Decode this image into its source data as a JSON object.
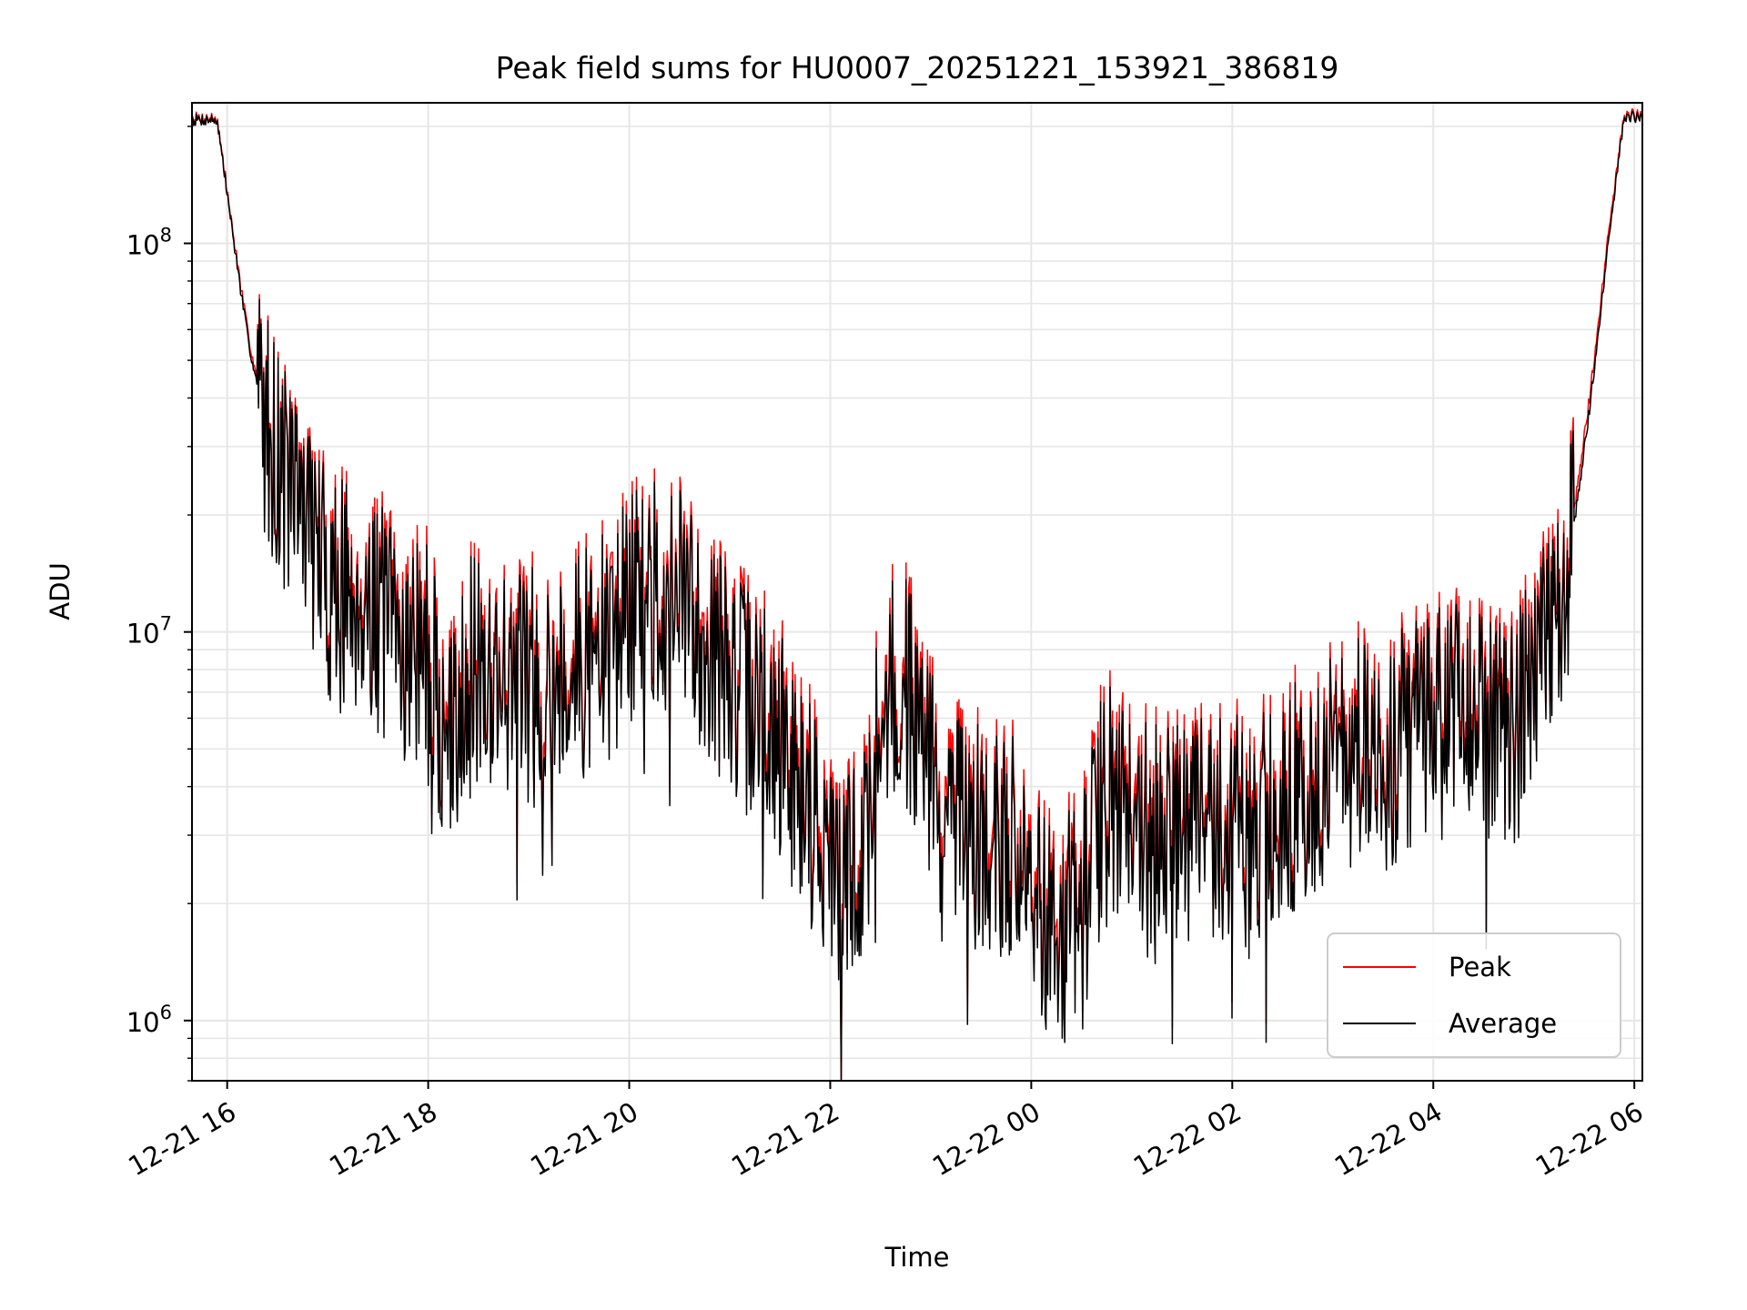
{
  "chart_data": {
    "type": "line",
    "title": "Peak field sums for HU0007_20251221_153921_386819",
    "xlabel": "Time",
    "ylabel": "ADU",
    "yscale": "log",
    "ylim": [
      700000,
      230000000
    ],
    "xlim_hours": [
      15.65,
      30.08
    ],
    "grid": true,
    "legend_position": "lower-right",
    "x_ticks": [
      {
        "hour": 16,
        "label": "12-21 16"
      },
      {
        "hour": 18,
        "label": "12-21 18"
      },
      {
        "hour": 20,
        "label": "12-21 20"
      },
      {
        "hour": 22,
        "label": "12-21 22"
      },
      {
        "hour": 24,
        "label": "12-22 00"
      },
      {
        "hour": 26,
        "label": "12-22 02"
      },
      {
        "hour": 28,
        "label": "12-22 04"
      },
      {
        "hour": 30,
        "label": "12-22 06"
      }
    ],
    "y_ticks": [
      {
        "value": 1000000,
        "base": "10",
        "exp": "6"
      },
      {
        "value": 10000000,
        "base": "10",
        "exp": "7"
      },
      {
        "value": 100000000,
        "base": "10",
        "exp": "8"
      }
    ],
    "x_unit": "hours since 12-21 00:00",
    "series": [
      {
        "name": "Peak",
        "color": "#ff0000",
        "anchors": [
          [
            15.65,
            210000000
          ],
          [
            15.9,
            210000000
          ],
          [
            16.05,
            110000000
          ],
          [
            16.2,
            60000000
          ],
          [
            16.35,
            38000000
          ],
          [
            16.55,
            27000000
          ],
          [
            16.8,
            21000000
          ],
          [
            17.0,
            14000000
          ],
          [
            17.3,
            13500000
          ],
          [
            17.6,
            11000000
          ],
          [
            17.8,
            10000000
          ],
          [
            18.0,
            9500000
          ],
          [
            18.2,
            5000000
          ],
          [
            18.35,
            8500000
          ],
          [
            18.7,
            8500000
          ],
          [
            19.0,
            8000000
          ],
          [
            19.4,
            8500000
          ],
          [
            19.8,
            10000000
          ],
          [
            20.1,
            13500000
          ],
          [
            20.5,
            13000000
          ],
          [
            20.8,
            10000000
          ],
          [
            21.0,
            8000000
          ],
          [
            21.3,
            7000000
          ],
          [
            21.6,
            5000000
          ],
          [
            21.9,
            3500000
          ],
          [
            22.1,
            2300000
          ],
          [
            22.35,
            3000000
          ],
          [
            22.5,
            7500000
          ],
          [
            22.8,
            7500000
          ],
          [
            22.95,
            5500000
          ],
          [
            23.1,
            3500000
          ],
          [
            23.5,
            3200000
          ],
          [
            23.8,
            3200000
          ],
          [
            24.0,
            2200000
          ],
          [
            24.3,
            1900000
          ],
          [
            24.5,
            2000000
          ],
          [
            24.75,
            4500000
          ],
          [
            25.0,
            3500000
          ],
          [
            25.4,
            3300000
          ],
          [
            25.8,
            3600000
          ],
          [
            26.1,
            3300000
          ],
          [
            26.4,
            3700000
          ],
          [
            26.8,
            4500000
          ],
          [
            27.1,
            5300000
          ],
          [
            27.5,
            5300000
          ],
          [
            27.9,
            6000000
          ],
          [
            28.2,
            6600000
          ],
          [
            28.5,
            6600000
          ],
          [
            28.8,
            6000000
          ],
          [
            29.0,
            8000000
          ],
          [
            29.15,
            11000000
          ],
          [
            29.3,
            14000000
          ],
          [
            29.45,
            25000000
          ],
          [
            29.6,
            50000000
          ],
          [
            29.75,
            110000000
          ],
          [
            29.9,
            215000000
          ],
          [
            30.08,
            215000000
          ]
        ]
      },
      {
        "name": "Average",
        "color": "#000000",
        "anchors": [
          [
            15.65,
            208000000
          ],
          [
            15.9,
            208000000
          ],
          [
            16.05,
            108000000
          ],
          [
            16.2,
            58000000
          ],
          [
            16.35,
            37000000
          ],
          [
            16.55,
            26000000
          ],
          [
            16.8,
            20000000
          ],
          [
            17.0,
            13000000
          ],
          [
            17.3,
            12500000
          ],
          [
            17.6,
            10000000
          ],
          [
            17.8,
            9000000
          ],
          [
            18.0,
            8500000
          ],
          [
            18.2,
            4500000
          ],
          [
            18.35,
            7800000
          ],
          [
            18.7,
            7800000
          ],
          [
            19.0,
            7300000
          ],
          [
            19.4,
            7800000
          ],
          [
            19.8,
            9200000
          ],
          [
            20.1,
            12500000
          ],
          [
            20.5,
            12000000
          ],
          [
            20.8,
            9200000
          ],
          [
            21.0,
            7300000
          ],
          [
            21.3,
            6300000
          ],
          [
            21.6,
            4500000
          ],
          [
            21.9,
            3100000
          ],
          [
            22.1,
            2100000
          ],
          [
            22.35,
            2700000
          ],
          [
            22.5,
            6800000
          ],
          [
            22.8,
            6800000
          ],
          [
            22.95,
            5000000
          ],
          [
            23.1,
            3100000
          ],
          [
            23.5,
            2900000
          ],
          [
            23.8,
            2900000
          ],
          [
            24.0,
            2000000
          ],
          [
            24.3,
            1700000
          ],
          [
            24.5,
            1800000
          ],
          [
            24.75,
            4100000
          ],
          [
            25.0,
            3100000
          ],
          [
            25.4,
            3000000
          ],
          [
            25.8,
            3300000
          ],
          [
            26.1,
            3000000
          ],
          [
            26.4,
            3300000
          ],
          [
            26.8,
            4100000
          ],
          [
            27.1,
            4800000
          ],
          [
            27.5,
            4800000
          ],
          [
            27.9,
            5500000
          ],
          [
            28.2,
            6000000
          ],
          [
            28.5,
            6000000
          ],
          [
            28.8,
            5500000
          ],
          [
            29.0,
            7300000
          ],
          [
            29.15,
            10000000
          ],
          [
            29.3,
            13000000
          ],
          [
            29.45,
            23000000
          ],
          [
            29.6,
            47000000
          ],
          [
            29.75,
            105000000
          ],
          [
            29.9,
            212000000
          ],
          [
            30.08,
            212000000
          ]
        ]
      }
    ],
    "legend": [
      {
        "label": "Peak",
        "color": "#ff0000"
      },
      {
        "label": "Average",
        "color": "#000000"
      }
    ]
  }
}
